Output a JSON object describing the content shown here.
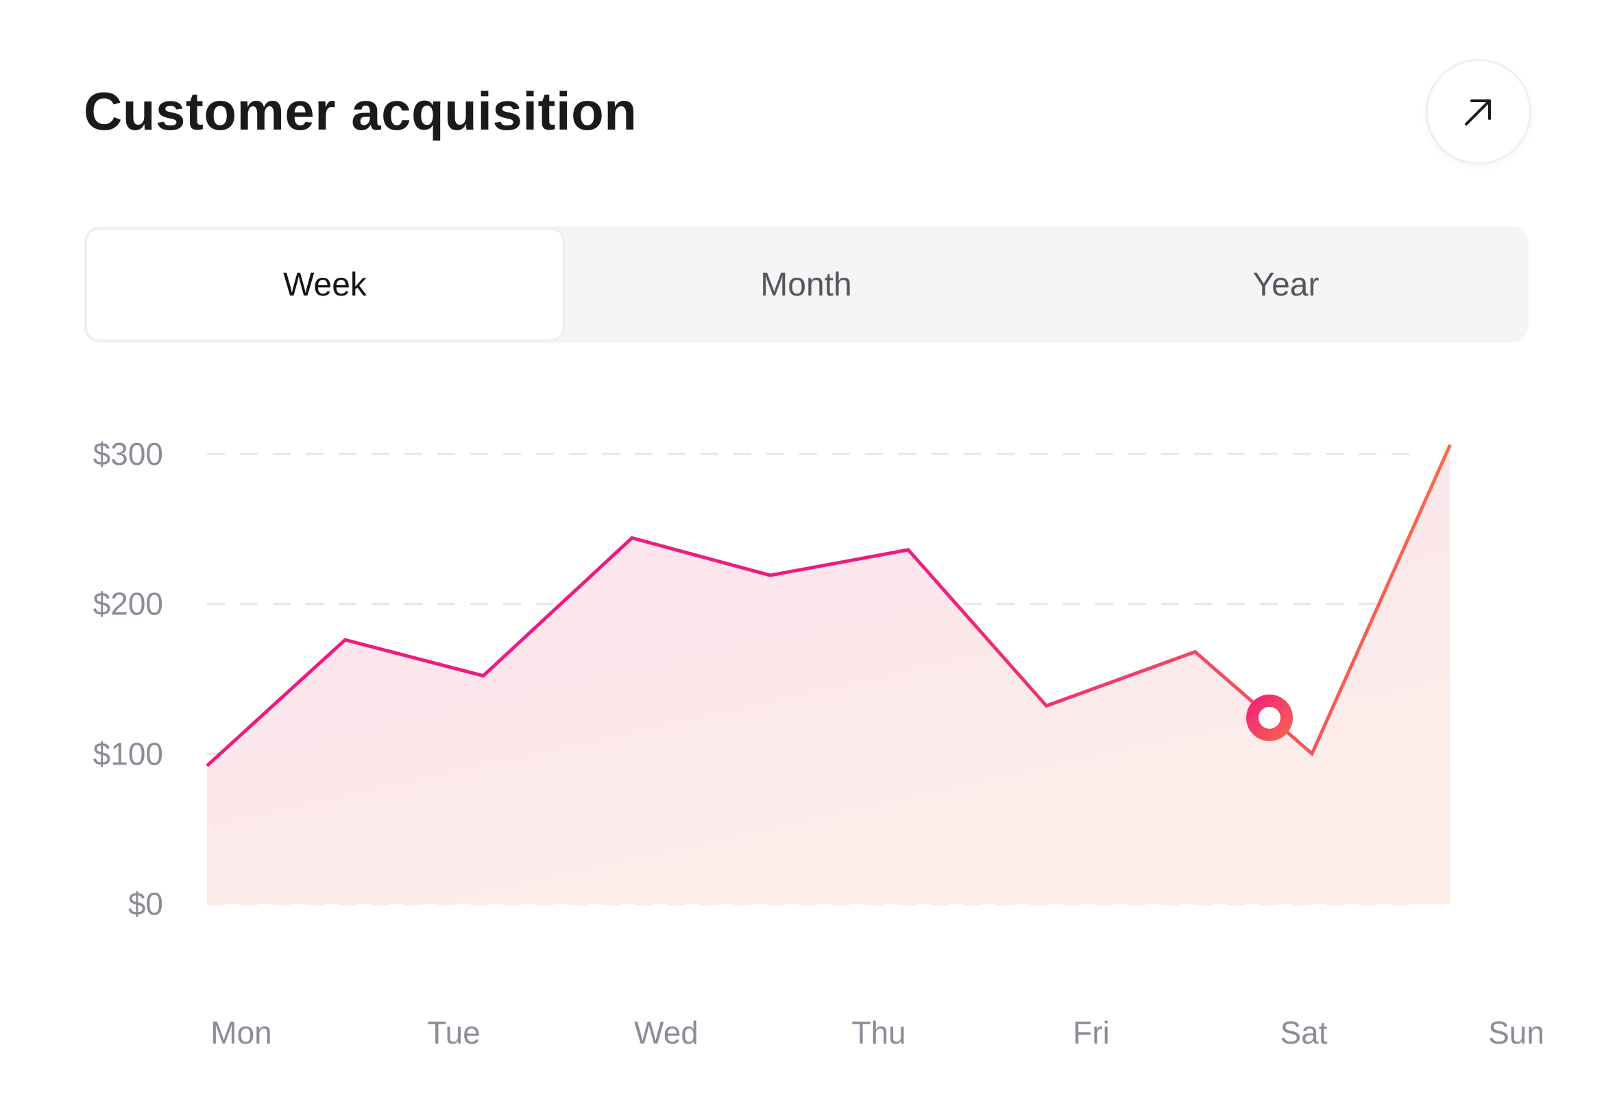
{
  "header": {
    "title": "Customer acquisition",
    "expand_icon": "arrow-up-right-icon"
  },
  "tabs": [
    {
      "label": "Week",
      "active": true
    },
    {
      "label": "Month",
      "active": false
    },
    {
      "label": "Year",
      "active": false
    }
  ],
  "colors": {
    "line_start": "#ee1b7f",
    "line_end": "#f86a4a",
    "fill_top": "#fbe0ee",
    "fill_bottom": "#fdeee9",
    "grid": "#e6e6ea",
    "tick_text": "#8b8b99"
  },
  "chart_data": {
    "type": "area",
    "x_labels": [
      "Mon",
      "Tue",
      "Wed",
      "Thu",
      "Fri",
      "Sat",
      "Sun"
    ],
    "y_ticks": [
      "$0",
      "$100",
      "$200",
      "$300"
    ],
    "ylim": [
      0,
      300
    ],
    "grid": true,
    "grid_style": "dashed",
    "series": [
      {
        "x": [
          0,
          0.65,
          1.3,
          2.0,
          2.65,
          3.3,
          3.95,
          4.65,
          5.2,
          5.85
        ],
        "values": [
          92,
          176,
          152,
          244,
          219,
          236,
          132,
          168,
          100,
          306
        ]
      }
    ],
    "highlight_point": {
      "x": 5.0,
      "value": 124
    }
  }
}
